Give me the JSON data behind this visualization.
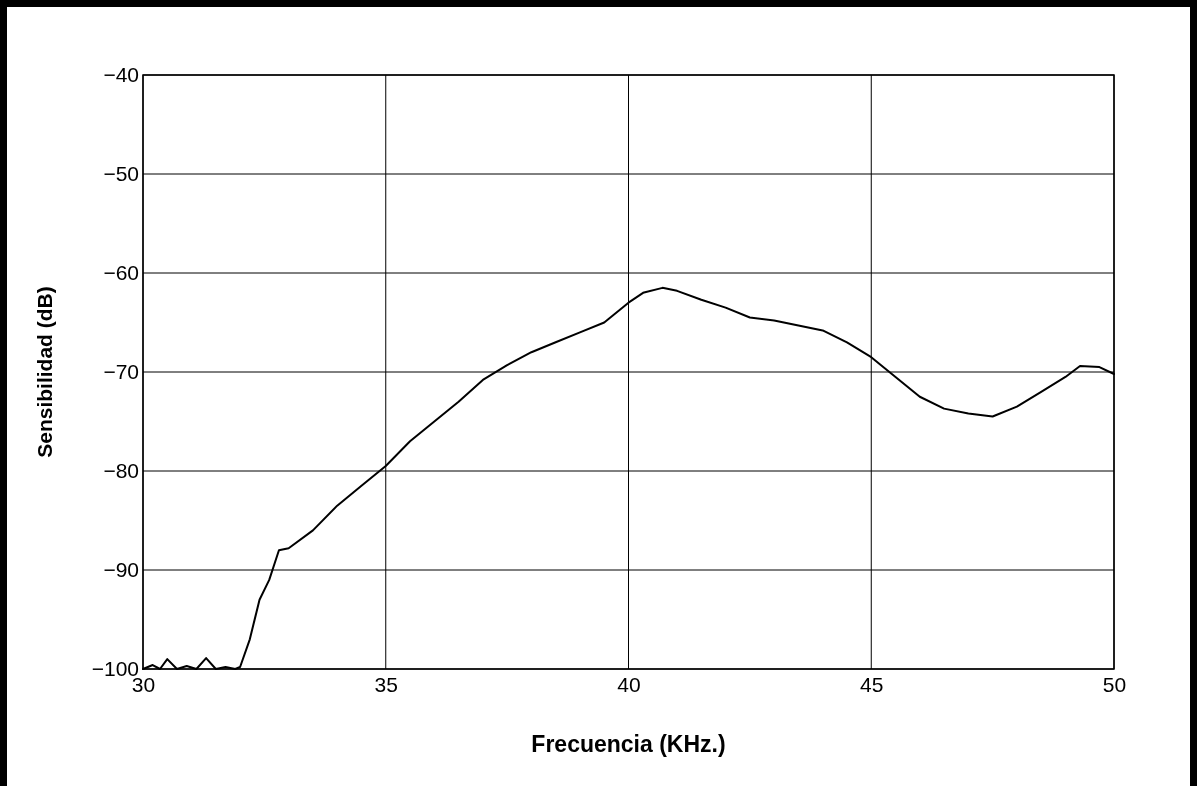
{
  "chart_data": {
    "type": "line",
    "xlabel": "Frecuencia (KHz.)",
    "ylabel": "Sensibilidad (dB)",
    "x": [
      30,
      30.2,
      30.35,
      30.5,
      30.7,
      30.9,
      31.1,
      31.3,
      31.5,
      31.7,
      31.9,
      32.0,
      32.2,
      32.4,
      32.6,
      32.8,
      33.0,
      33.5,
      34.0,
      34.5,
      35.0,
      35.5,
      36.0,
      36.5,
      37.0,
      37.5,
      38.0,
      38.5,
      39.0,
      39.5,
      40.0,
      40.3,
      40.7,
      41.0,
      41.5,
      42.0,
      42.5,
      43.0,
      43.5,
      44.0,
      44.5,
      45.0,
      45.5,
      46.0,
      46.5,
      47.0,
      47.5,
      48.0,
      48.5,
      49.0,
      49.3,
      49.7,
      50.0
    ],
    "series": [
      {
        "color": "#000000",
        "values": [
          -100,
          -99.6,
          -100,
          -99,
          -100,
          -99.7,
          -100,
          -98.9,
          -100,
          -99.8,
          -100,
          -99.8,
          -97,
          -93,
          -91,
          -88,
          -87.8,
          -86,
          -83.5,
          -81.5,
          -79.5,
          -77,
          -75,
          -73,
          -70.8,
          -69.3,
          -68,
          -67,
          -66,
          -65,
          -63,
          -62,
          -61.5,
          -61.8,
          -62.7,
          -63.5,
          -64.5,
          -64.8,
          -65.3,
          -65.8,
          -67,
          -68.5,
          -70.5,
          -72.5,
          -73.7,
          -74.2,
          -74.5,
          -73.5,
          -72,
          -70.5,
          -69.4,
          -69.5,
          -70.2
        ]
      }
    ],
    "xlim": [
      30,
      50
    ],
    "xticks": [
      30,
      35,
      40,
      45,
      50
    ],
    "ylim": [
      -100,
      -40
    ],
    "yticks": [
      {
        "value": -100,
        "label": "−100"
      },
      {
        "value": -90,
        "label": "−90"
      },
      {
        "value": -80,
        "label": "−80"
      },
      {
        "value": -70,
        "label": "−70"
      },
      {
        "value": -60,
        "label": "−60"
      },
      {
        "value": -50,
        "label": "−50"
      },
      {
        "value": -40,
        "label": "−40"
      }
    ],
    "grid": true,
    "marker": "none",
    "line_style": "solid"
  }
}
